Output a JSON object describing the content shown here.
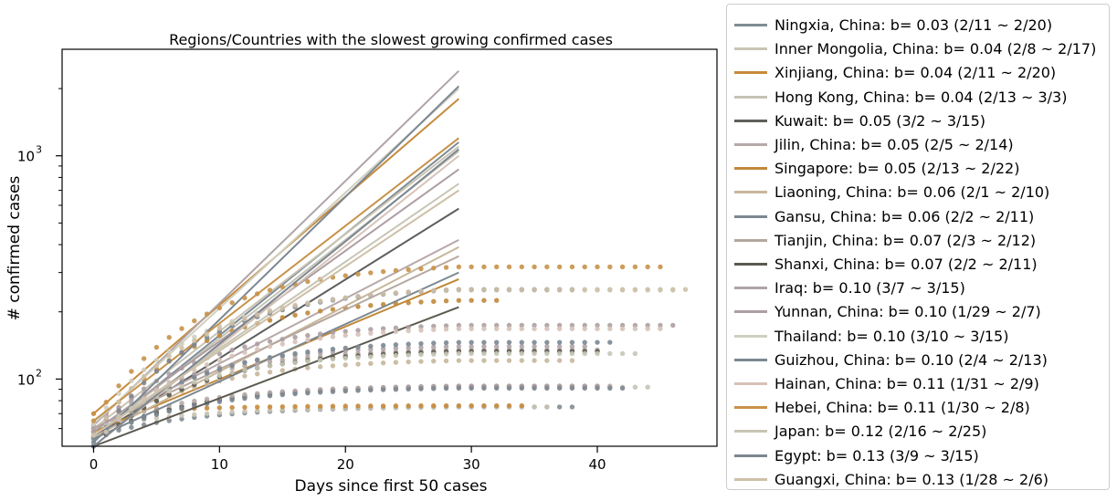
{
  "chart_data": {
    "type": "scatter",
    "title": "Regions/Countries with the slowest growing confirmed cases",
    "xlabel": "Days since first 50 cases",
    "ylabel": "# confirmed cases",
    "xlim": [
      -2.5,
      49.5
    ],
    "ylim": [
      50,
      3000
    ],
    "yscale": "log",
    "x_ticks": [
      0,
      10,
      20,
      30,
      40
    ],
    "y_ticks": [
      {
        "value": 100,
        "base": "10",
        "exp": "2"
      },
      {
        "value": 1000,
        "base": "10",
        "exp": "3"
      }
    ],
    "grid": false,
    "legend_position": "outside-right",
    "series": [
      {
        "name": "Ningxia, China: b= 0.03 (2/11 ~ 2/20)",
        "color": "#7f8c94",
        "line_start": 55,
        "line_end": 1150,
        "plateau": 75,
        "days": 38
      },
      {
        "name": "Inner Mongolia, China: b= 0.04 (2/8 ~ 2/17)",
        "color": "#c9c4b4",
        "line_start": 60,
        "line_end": 1100,
        "plateau": 75,
        "days": 36
      },
      {
        "name": "Xinjiang, China: b= 0.04 (2/11 ~ 2/20)",
        "color": "#c68a3c",
        "line_start": 70,
        "line_end": 1800,
        "plateau": 76,
        "days": 34
      },
      {
        "name": "Hong Kong, China: b= 0.04 (2/13 ~ 3/3)",
        "color": "#c5c3b5",
        "line_start": 55,
        "line_end": 1050,
        "plateau": 92,
        "days": 44
      },
      {
        "name": "Kuwait: b= 0.05 (3/2 ~ 3/15)",
        "color": "#5e5e5c",
        "line_start": 55,
        "line_end": 580,
        "plateau": 93,
        "days": 40
      },
      {
        "name": "Jilin, China: b= 0.05 (2/5 ~ 2/14)",
        "color": "#b7a8a9",
        "line_start": 60,
        "line_end": 420,
        "plateau": 93,
        "days": 41
      },
      {
        "name": "Singapore: b= 0.05 (2/13 ~ 2/22)",
        "color": "#c1883a",
        "line_start": 58,
        "line_end": 280,
        "plateau": 225,
        "days": 32
      },
      {
        "name": "Liaoning, China: b= 0.06 (2/1 ~ 2/10)",
        "color": "#c7b79c",
        "line_start": 55,
        "line_end": 390,
        "plateau": 121,
        "days": 38
      },
      {
        "name": "Gansu, China: b= 0.06 (2/2 ~ 2/11)",
        "color": "#7d8790",
        "line_start": 54,
        "line_end": 300,
        "plateau": 91,
        "days": 42
      },
      {
        "name": "Tianjin, China: b= 0.07 (2/3 ~ 2/12)",
        "color": "#b5a69e",
        "line_start": 60,
        "line_end": 355,
        "plateau": 135,
        "days": 40
      },
      {
        "name": "Shanxi, China: b= 0.07 (2/2 ~ 2/11)",
        "color": "#5c5a50",
        "line_start": 50,
        "line_end": 210,
        "plateau": 133,
        "days": 40
      },
      {
        "name": "Iraq: b= 0.10 (3/7 ~ 3/15)",
        "color": "#b0a4a8",
        "line_start": 62,
        "line_end": 2400,
        "plateau": 140,
        "days": 39
      },
      {
        "name": "Yunnan, China: b= 0.10 (1/29 ~ 2/7)",
        "color": "#ad9ea2",
        "line_start": 58,
        "line_end": 870,
        "plateau": 174,
        "days": 46
      },
      {
        "name": "Thailand: b= 0.10 (3/10 ~ 3/15)",
        "color": "#cfcfc0",
        "line_start": 63,
        "line_end": 2000,
        "plateau": 250,
        "days": 46
      },
      {
        "name": "Guizhou, China: b= 0.10 (2/4 ~ 2/13)",
        "color": "#7b8892",
        "line_start": 52,
        "line_end": 2050,
        "plateau": 146,
        "days": 41
      },
      {
        "name": "Hainan, China: b= 0.11 (1/31 ~ 2/9)",
        "color": "#d6c2b7",
        "line_start": 50,
        "line_end": 1000,
        "plateau": 168,
        "days": 45
      },
      {
        "name": "Hebei, China: b= 0.11 (1/30 ~ 2/8)",
        "color": "#c7924a",
        "line_start": 65,
        "line_end": 1200,
        "plateau": 318,
        "days": 45
      },
      {
        "name": "Japan: b= 0.12 (2/16 ~ 2/25)",
        "color": "#c7c6b6",
        "line_start": 56,
        "line_end": 750,
        "plateau": 130,
        "days": 43
      },
      {
        "name": "Egypt: b= 0.13 (3/9 ~ 3/15)",
        "color": "#7c8690",
        "line_start": 50,
        "line_end": 1070,
        "plateau": 252,
        "days": 38
      },
      {
        "name": "Guangxi, China: b= 0.13 (1/28 ~ 2/6)",
        "color": "#cec0a8",
        "line_start": 56,
        "line_end": 700,
        "plateau": 252,
        "days": 47
      }
    ]
  }
}
